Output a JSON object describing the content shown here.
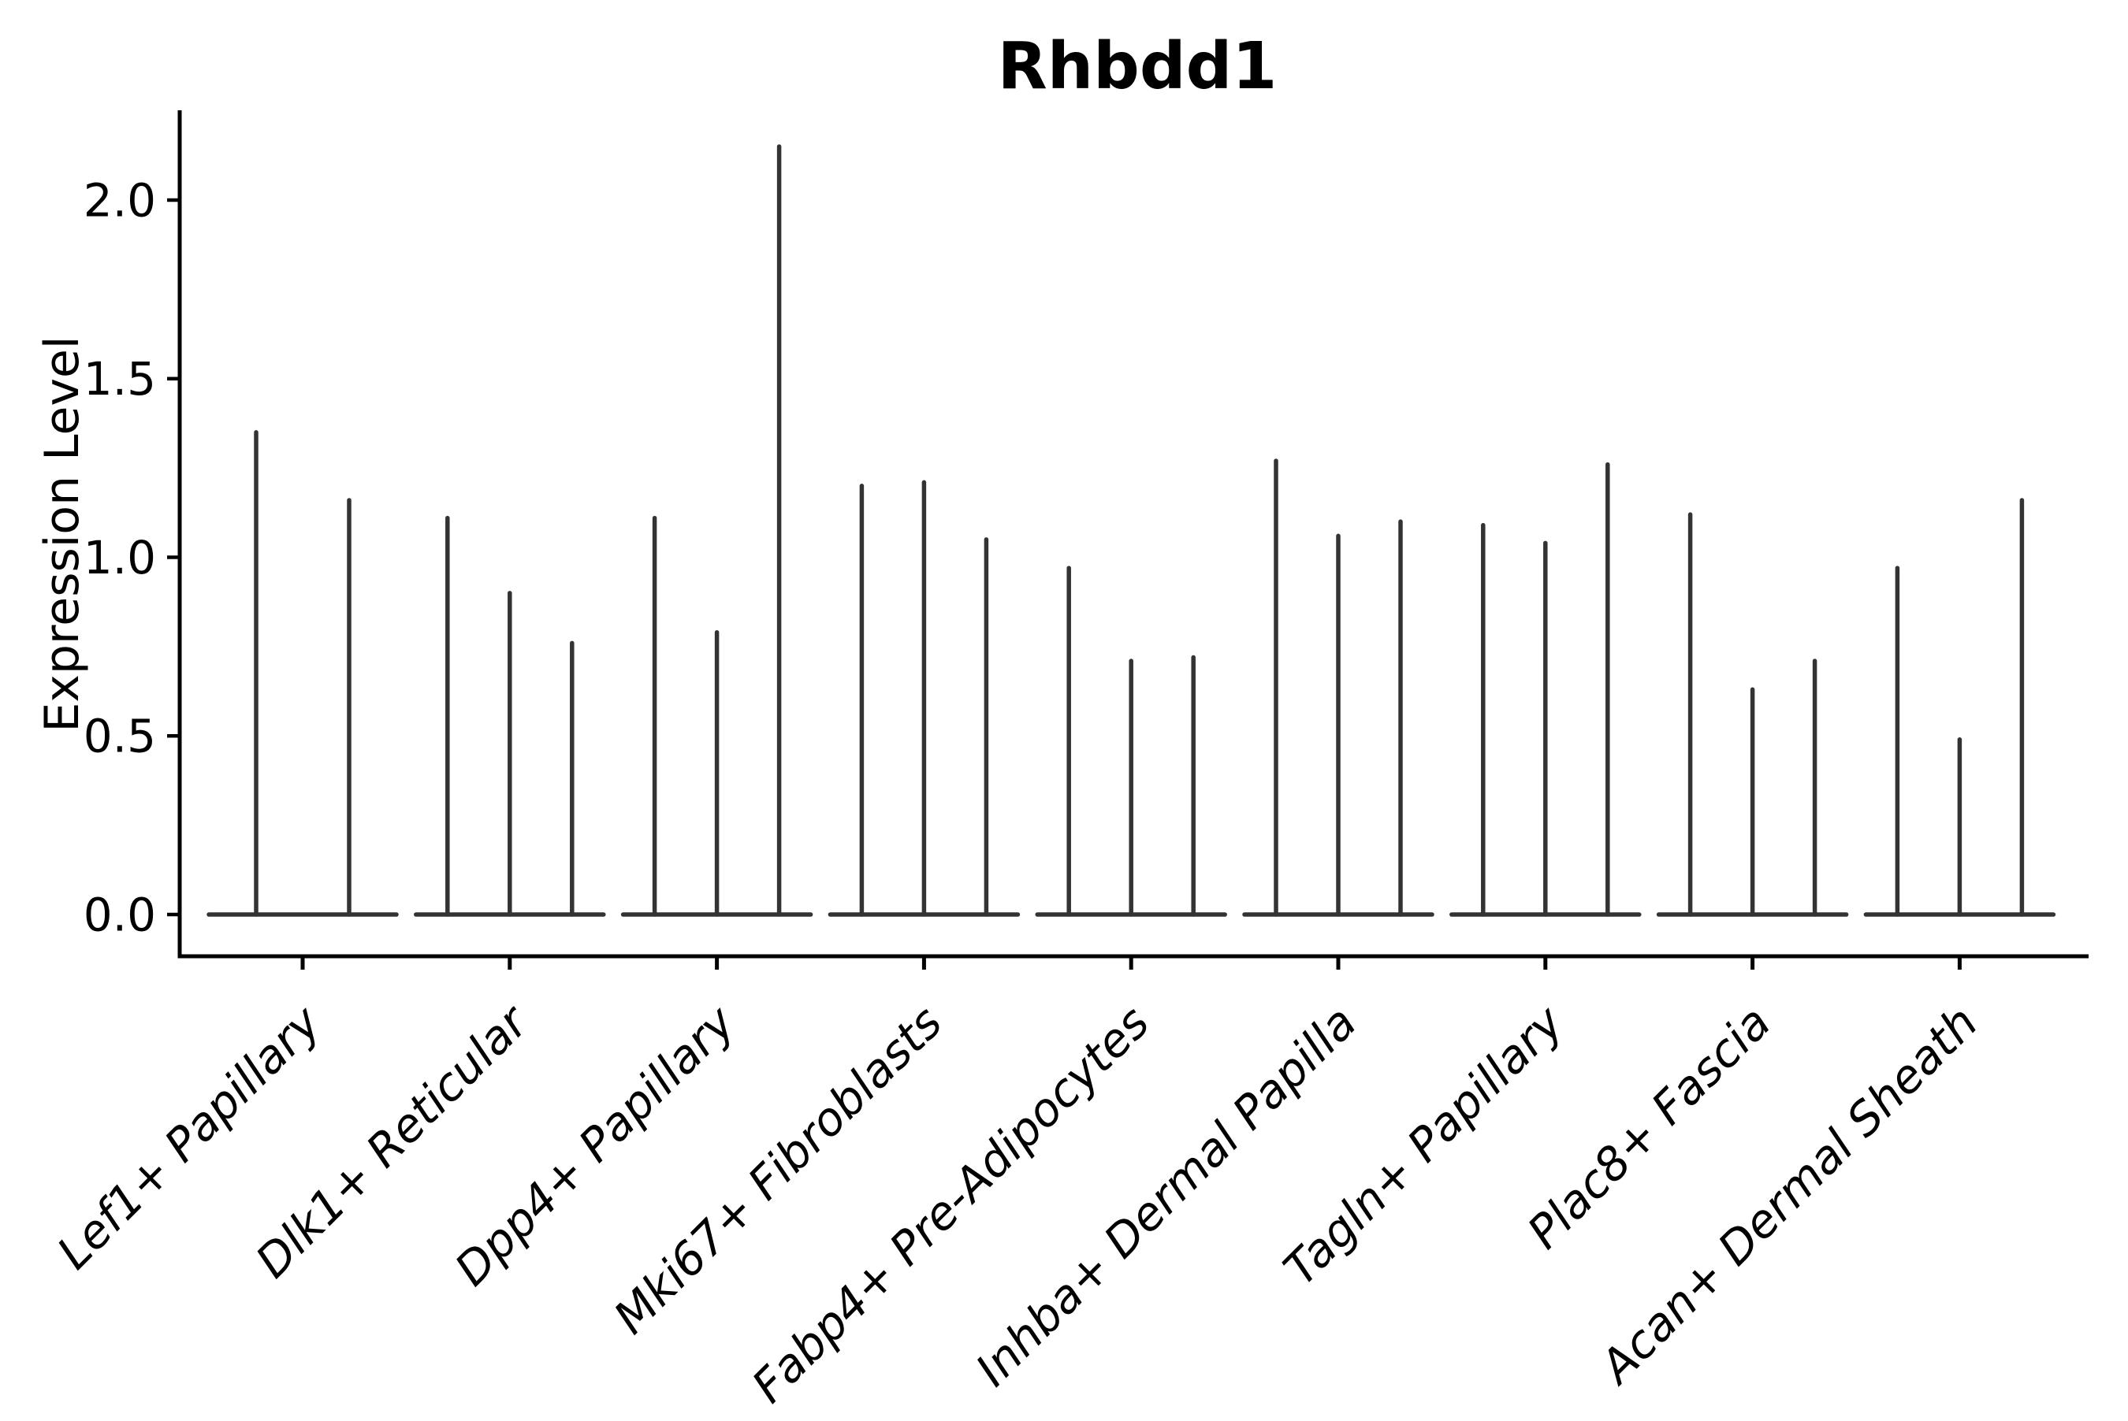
{
  "figure": {
    "title": "Rhbdd1",
    "y_axis_label": "Expression Level"
  },
  "colors": {
    "background": "#ffffff",
    "violin": "#333333",
    "axis": "#000000",
    "text": "#000000"
  },
  "chart_data": {
    "type": "violin",
    "title": "Rhbdd1",
    "xlabel": "",
    "ylabel": "Expression Level",
    "ylim": [
      0,
      2.25
    ],
    "yticks": [
      0.0,
      0.5,
      1.0,
      1.5,
      2.0
    ],
    "ytick_labels": [
      "0.0",
      "0.5",
      "1.0",
      "1.5",
      "2.0"
    ],
    "grid": false,
    "legend_position": "none",
    "x_tick_label_rotation_deg": 45,
    "categories": [
      "Lef1+ Papillary",
      "Dlk1+ Reticular",
      "Dpp4+ Papillary",
      "Mki67+ Fibroblasts",
      "Fabp4+ Pre-Adipocytes",
      "Inhba+ Dermal Papilla",
      "Tagln+ Papillary",
      "Plac8+ Fascia",
      "Acan+ Dermal Sheath"
    ],
    "groups": [
      {
        "category": "Lef1+ Papillary",
        "violin_baseline_value": 0.0,
        "violin_max_values": [
          1.35,
          1.16
        ]
      },
      {
        "category": "Dlk1+ Reticular",
        "violin_baseline_value": 0.0,
        "violin_max_values": [
          1.11,
          0.9,
          0.76
        ]
      },
      {
        "category": "Dpp4+ Papillary",
        "violin_baseline_value": 0.0,
        "violin_max_values": [
          1.11,
          0.79,
          2.15
        ]
      },
      {
        "category": "Mki67+ Fibroblasts",
        "violin_baseline_value": 0.0,
        "violin_max_values": [
          1.2,
          1.21,
          1.05
        ]
      },
      {
        "category": "Fabp4+ Pre-Adipocytes",
        "violin_baseline_value": 0.0,
        "violin_max_values": [
          0.97,
          0.71,
          0.72
        ]
      },
      {
        "category": "Inhba+ Dermal Papilla",
        "violin_baseline_value": 0.0,
        "violin_max_values": [
          1.27,
          1.06,
          1.1
        ]
      },
      {
        "category": "Tagln+ Papillary",
        "violin_baseline_value": 0.0,
        "violin_max_values": [
          1.09,
          1.04,
          1.26
        ]
      },
      {
        "category": "Plac8+ Fascia",
        "violin_baseline_value": 0.0,
        "violin_max_values": [
          1.12,
          0.63,
          0.71
        ]
      },
      {
        "category": "Acan+ Dermal Sheath",
        "violin_baseline_value": 0.0,
        "violin_max_values": [
          0.97,
          0.49,
          1.16
        ]
      }
    ]
  }
}
